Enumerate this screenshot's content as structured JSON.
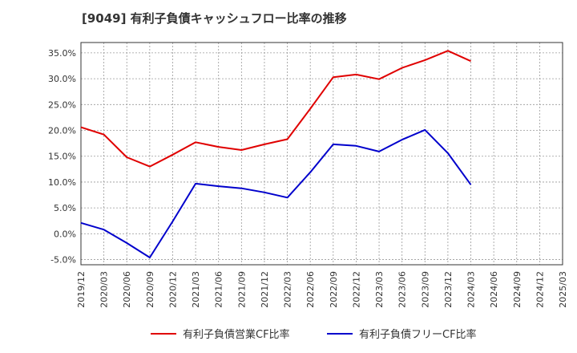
{
  "chart_data": {
    "type": "line",
    "title": "[9049]  有利子負債キャッシュフロー比率の推移",
    "xlabel": "",
    "ylabel": "",
    "x": [
      "2019/12",
      "2020/03",
      "2020/06",
      "2020/09",
      "2020/12",
      "2021/03",
      "2021/06",
      "2021/09",
      "2021/12",
      "2022/03",
      "2022/06",
      "2022/09",
      "2022/12",
      "2023/03",
      "2023/06",
      "2023/09",
      "2023/12",
      "2024/03",
      "2024/06",
      "2024/09",
      "2024/12",
      "2025/03"
    ],
    "y_ticks": [
      "-5.0%",
      "0.0%",
      "5.0%",
      "10.0%",
      "15.0%",
      "20.0%",
      "25.0%",
      "30.0%",
      "35.0%"
    ],
    "y_tick_values": [
      -5,
      0,
      5,
      10,
      15,
      20,
      25,
      30,
      35
    ],
    "ylim": [
      -6,
      37
    ],
    "grid": true,
    "legend_position": "bottom",
    "series": [
      {
        "name": "有利子負債営業CF比率",
        "color": "#e00000",
        "values": [
          20.6,
          19.2,
          14.8,
          13.0,
          15.3,
          17.7,
          16.8,
          16.2,
          17.3,
          18.3,
          24.2,
          30.3,
          30.8,
          29.9,
          32.1,
          33.6,
          35.4,
          33.4,
          null,
          null,
          null,
          null
        ]
      },
      {
        "name": "有利子負債フリーCF比率",
        "color": "#0000cc",
        "values": [
          2.1,
          0.8,
          -1.8,
          -4.6,
          2.4,
          9.7,
          9.2,
          8.8,
          8.0,
          7.0,
          11.9,
          17.3,
          17.0,
          15.9,
          18.2,
          20.1,
          15.6,
          9.5,
          null,
          null,
          null,
          null
        ]
      }
    ]
  }
}
